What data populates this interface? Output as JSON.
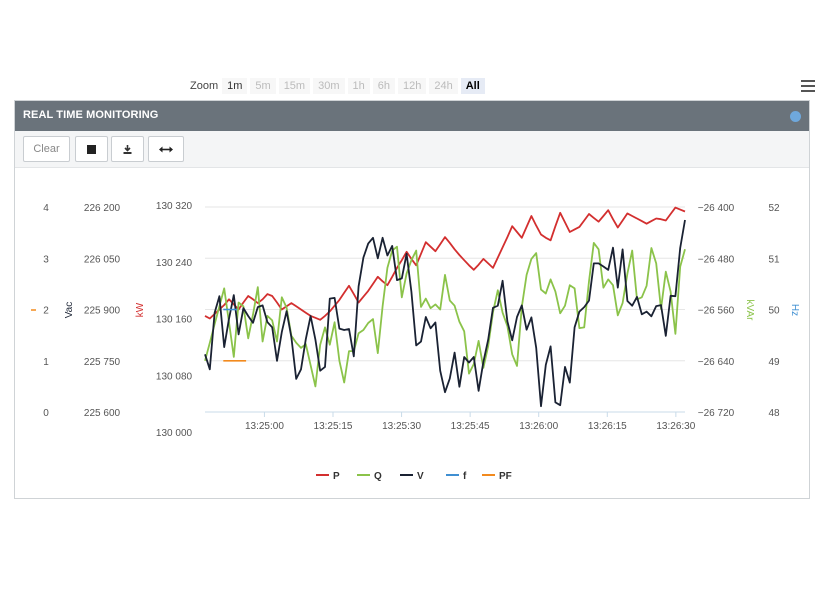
{
  "panel": {
    "title": "REAL TIME MONITORING",
    "status_color": "#6fa8dc"
  },
  "toolbar": {
    "clear_label": "Clear",
    "stop_icon": "stop-icon",
    "download_icon": "download-icon",
    "expand_icon": "expand-horizontal-icon"
  },
  "zoom": {
    "label": "Zoom",
    "options": [
      "1m",
      "5m",
      "15m",
      "30m",
      "1h",
      "6h",
      "12h",
      "24h",
      "All"
    ],
    "enabled": [
      "1m",
      "All"
    ],
    "selected": "All"
  },
  "menu_icon": "hamburger-menu-icon",
  "chart_data": {
    "type": "line",
    "title": "",
    "x_tick_labels": [
      "13:25:00",
      "13:25:15",
      "13:25:30",
      "13:25:45",
      "13:26:00",
      "13:26:15",
      "13:26:30"
    ],
    "x_range": [
      "13:24:47",
      "13:26:32"
    ],
    "grid": true,
    "legend_position": "bottom-center",
    "axes": [
      {
        "id": "pf",
        "side": "left",
        "title": "",
        "color": "#f28a1e",
        "ticks": [
          "0",
          "1",
          "2",
          "3",
          "4"
        ],
        "range": [
          0,
          4
        ]
      },
      {
        "id": "vac",
        "side": "left",
        "title": "Vac",
        "color": "#1a2233",
        "ticks": [
          "225 600",
          "225 750",
          "225 900",
          "226 050",
          "226 200"
        ],
        "range": [
          225600,
          226200
        ]
      },
      {
        "id": "kw",
        "side": "left",
        "title": "kW",
        "color": "#d32f2f",
        "ticks": [
          "130 000",
          "130 080",
          "130 160",
          "130 240",
          "130 320"
        ],
        "range": [
          130000,
          130320
        ]
      },
      {
        "id": "kvar",
        "side": "right",
        "title": "kVAr",
        "color": "#8bc34a",
        "ticks": [
          "−26 720",
          "−26 640",
          "−26 560",
          "−26 480",
          "−26 400"
        ],
        "range": [
          -26720,
          -26400
        ]
      },
      {
        "id": "hz",
        "side": "right",
        "title": "Hz",
        "color": "#3f8fd2",
        "ticks": [
          "48",
          "49",
          "50",
          "51",
          "52"
        ],
        "range": [
          48,
          52
        ]
      }
    ],
    "series": [
      {
        "name": "P",
        "axis": "kw",
        "color": "#d32f2f",
        "values": [
          130150,
          130146,
          130153,
          130160,
          130167,
          130176,
          130168,
          130160,
          130171,
          130181,
          130176,
          130170,
          130176,
          130184,
          130181,
          130171,
          130160,
          130165,
          130170,
          130165,
          130160,
          130155,
          130150,
          130147,
          130144,
          130150,
          130157,
          130166,
          130175,
          130186,
          130197,
          130184,
          130171,
          130180,
          130189,
          130200,
          130211,
          130204,
          130198,
          130211,
          130225,
          130237,
          130250,
          130239,
          130229,
          130247,
          130265,
          130258,
          130251,
          130262,
          130273,
          130264,
          130254,
          130245,
          130237,
          130229,
          130222,
          130230,
          130239,
          130232,
          130225,
          130241,
          130257,
          130273,
          130290,
          130281,
          130272,
          130289,
          130306,
          130291,
          130277,
          130272,
          130268,
          130290,
          130311,
          130296,
          130281,
          130285,
          130289,
          130299,
          130309,
          130303,
          130297,
          130306,
          130315,
          130301,
          130288,
          130299,
          130310,
          130306,
          130302,
          130298,
          130294,
          130298,
          130302,
          130301,
          130299,
          130309,
          130319,
          130316,
          130313
        ]
      },
      {
        "name": "Q",
        "axis": "kvar",
        "color": "#8bc34a",
        "values": [
          -26640,
          -26612,
          -26583,
          -26555,
          -26527,
          -26580,
          -26634,
          -26549,
          -26555,
          -26605,
          -26568,
          -26525,
          -26610,
          -26570,
          -26577,
          -26610,
          -26541,
          -26557,
          -26601,
          -26612,
          -26620,
          -26614,
          -26647,
          -26680,
          -26615,
          -26588,
          -26615,
          -26580,
          -26640,
          -26674,
          -26625,
          -26625,
          -26597,
          -26592,
          -26581,
          -26575,
          -26628,
          -26555,
          -26495,
          -26468,
          -26462,
          -26541,
          -26504,
          -26483,
          -26468,
          -26556,
          -26543,
          -26558,
          -26552,
          -26560,
          -26506,
          -26546,
          -26554,
          -26579,
          -26594,
          -26660,
          -26645,
          -26609,
          -26651,
          -26617,
          -26564,
          -26530,
          -26565,
          -26586,
          -26630,
          -26648,
          -26556,
          -26506,
          -26481,
          -26472,
          -26529,
          -26535,
          -26513,
          -26532,
          -26566,
          -26554,
          -26522,
          -26527,
          -26589,
          -26588,
          -26516,
          -26456,
          -26466,
          -26526,
          -26513,
          -26522,
          -26569,
          -26550,
          -26504,
          -26468,
          -26544,
          -26541,
          -26523,
          -26464,
          -26488,
          -26559,
          -26501,
          -26532,
          -26598,
          -26493,
          -26466
        ]
      },
      {
        "name": "V",
        "axis": "vac",
        "color": "#1a2233",
        "values": [
          225769,
          225725,
          225890,
          225939,
          225790,
          225873,
          225942,
          225827,
          225904,
          225881,
          225861,
          225907,
          225912,
          225863,
          225848,
          225750,
          225834,
          225895,
          225818,
          225697,
          225725,
          225813,
          225881,
          225812,
          225721,
          225732,
          225932,
          225934,
          225844,
          225840,
          225843,
          225763,
          225968,
          226052,
          226093,
          226110,
          226050,
          226110,
          226058,
          226086,
          225986,
          225991,
          226063,
          225952,
          225795,
          225806,
          225878,
          225845,
          225862,
          225721,
          225658,
          225698,
          225774,
          225674,
          225761,
          225745,
          225761,
          225662,
          225747,
          225812,
          225905,
          225911,
          225984,
          225865,
          225810,
          225878,
          225912,
          225841,
          225877,
          225788,
          225617,
          225738,
          225792,
          225628,
          225620,
          225732,
          225686,
          225848,
          225894,
          225907,
          225926,
          226035,
          226035,
          226026,
          226016,
          226081,
          225964,
          226076,
          225925,
          225911,
          225937,
          225886,
          225894,
          225880,
          225910,
          225913,
          225823,
          225940,
          225939,
          226080,
          226162
        ]
      },
      {
        "name": "f",
        "axis": "hz",
        "color": "#3f8fd2",
        "x": [
          "13:24:51",
          "13:24:54"
        ],
        "values": [
          50,
          50
        ]
      },
      {
        "name": "PF",
        "axis": "pf",
        "color": "#f28a1e",
        "x": [
          "13:24:51",
          "13:24:56"
        ],
        "values": [
          1,
          1
        ]
      }
    ]
  }
}
